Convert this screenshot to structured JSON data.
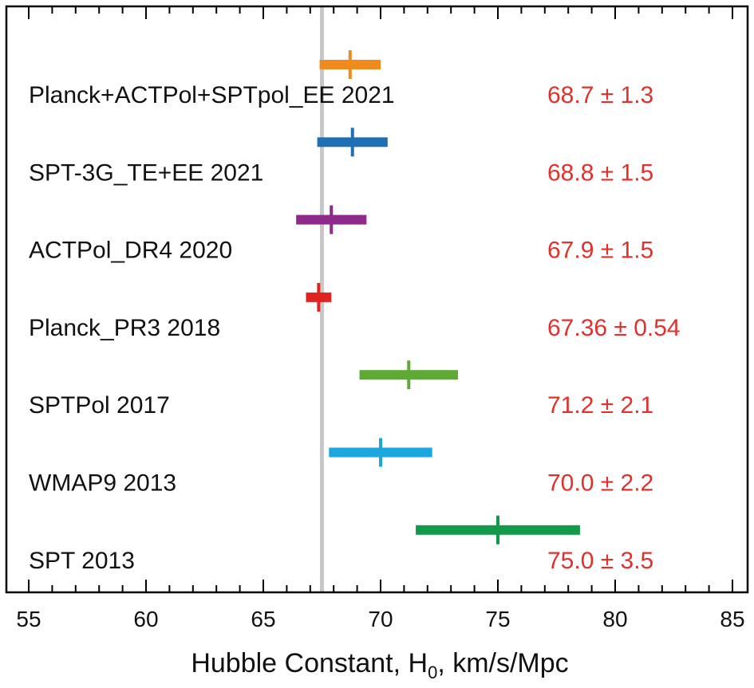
{
  "chart_data": {
    "type": "scatter",
    "xlabel": "Hubble Constant, H0, km/s/Mpc",
    "xlabel_parts": {
      "before": "Hubble Constant, H",
      "subscript": "0",
      "after": ", km/s/Mpc"
    },
    "xlim": [
      55,
      85
    ],
    "xticks": [
      55,
      60,
      65,
      70,
      75,
      80,
      85
    ],
    "minor_step": 1,
    "reference_line": 67.5,
    "grid": false,
    "series": [
      {
        "label": "Planck+ACTPol+SPTpol_EE 2021",
        "value": 68.7,
        "error": 1.3,
        "value_text": "68.7 ± 1.3",
        "color": "#f08a1c"
      },
      {
        "label": "SPT-3G_TE+EE 2021",
        "value": 68.8,
        "error": 1.5,
        "value_text": "68.8 ± 1.5",
        "color": "#1f6fb5"
      },
      {
        "label": "ACTPol_DR4 2020",
        "value": 67.9,
        "error": 1.5,
        "value_text": "67.9 ± 1.5",
        "color": "#8e2a8c"
      },
      {
        "label": "Planck_PR3 2018",
        "value": 67.36,
        "error": 0.54,
        "value_text": "67.36 ± 0.54",
        "color": "#e0231e"
      },
      {
        "label": "SPTPol 2017",
        "value": 71.2,
        "error": 2.1,
        "value_text": "71.2 ± 2.1",
        "color": "#5faa34"
      },
      {
        "label": "WMAP9 2013",
        "value": 70.0,
        "error": 2.2,
        "value_text": "70.0 ± 2.2",
        "color": "#1ca7de"
      },
      {
        "label": "SPT 2013",
        "value": 75.0,
        "error": 3.5,
        "value_text": "75.0 ± 3.5",
        "color": "#12994a"
      }
    ]
  }
}
